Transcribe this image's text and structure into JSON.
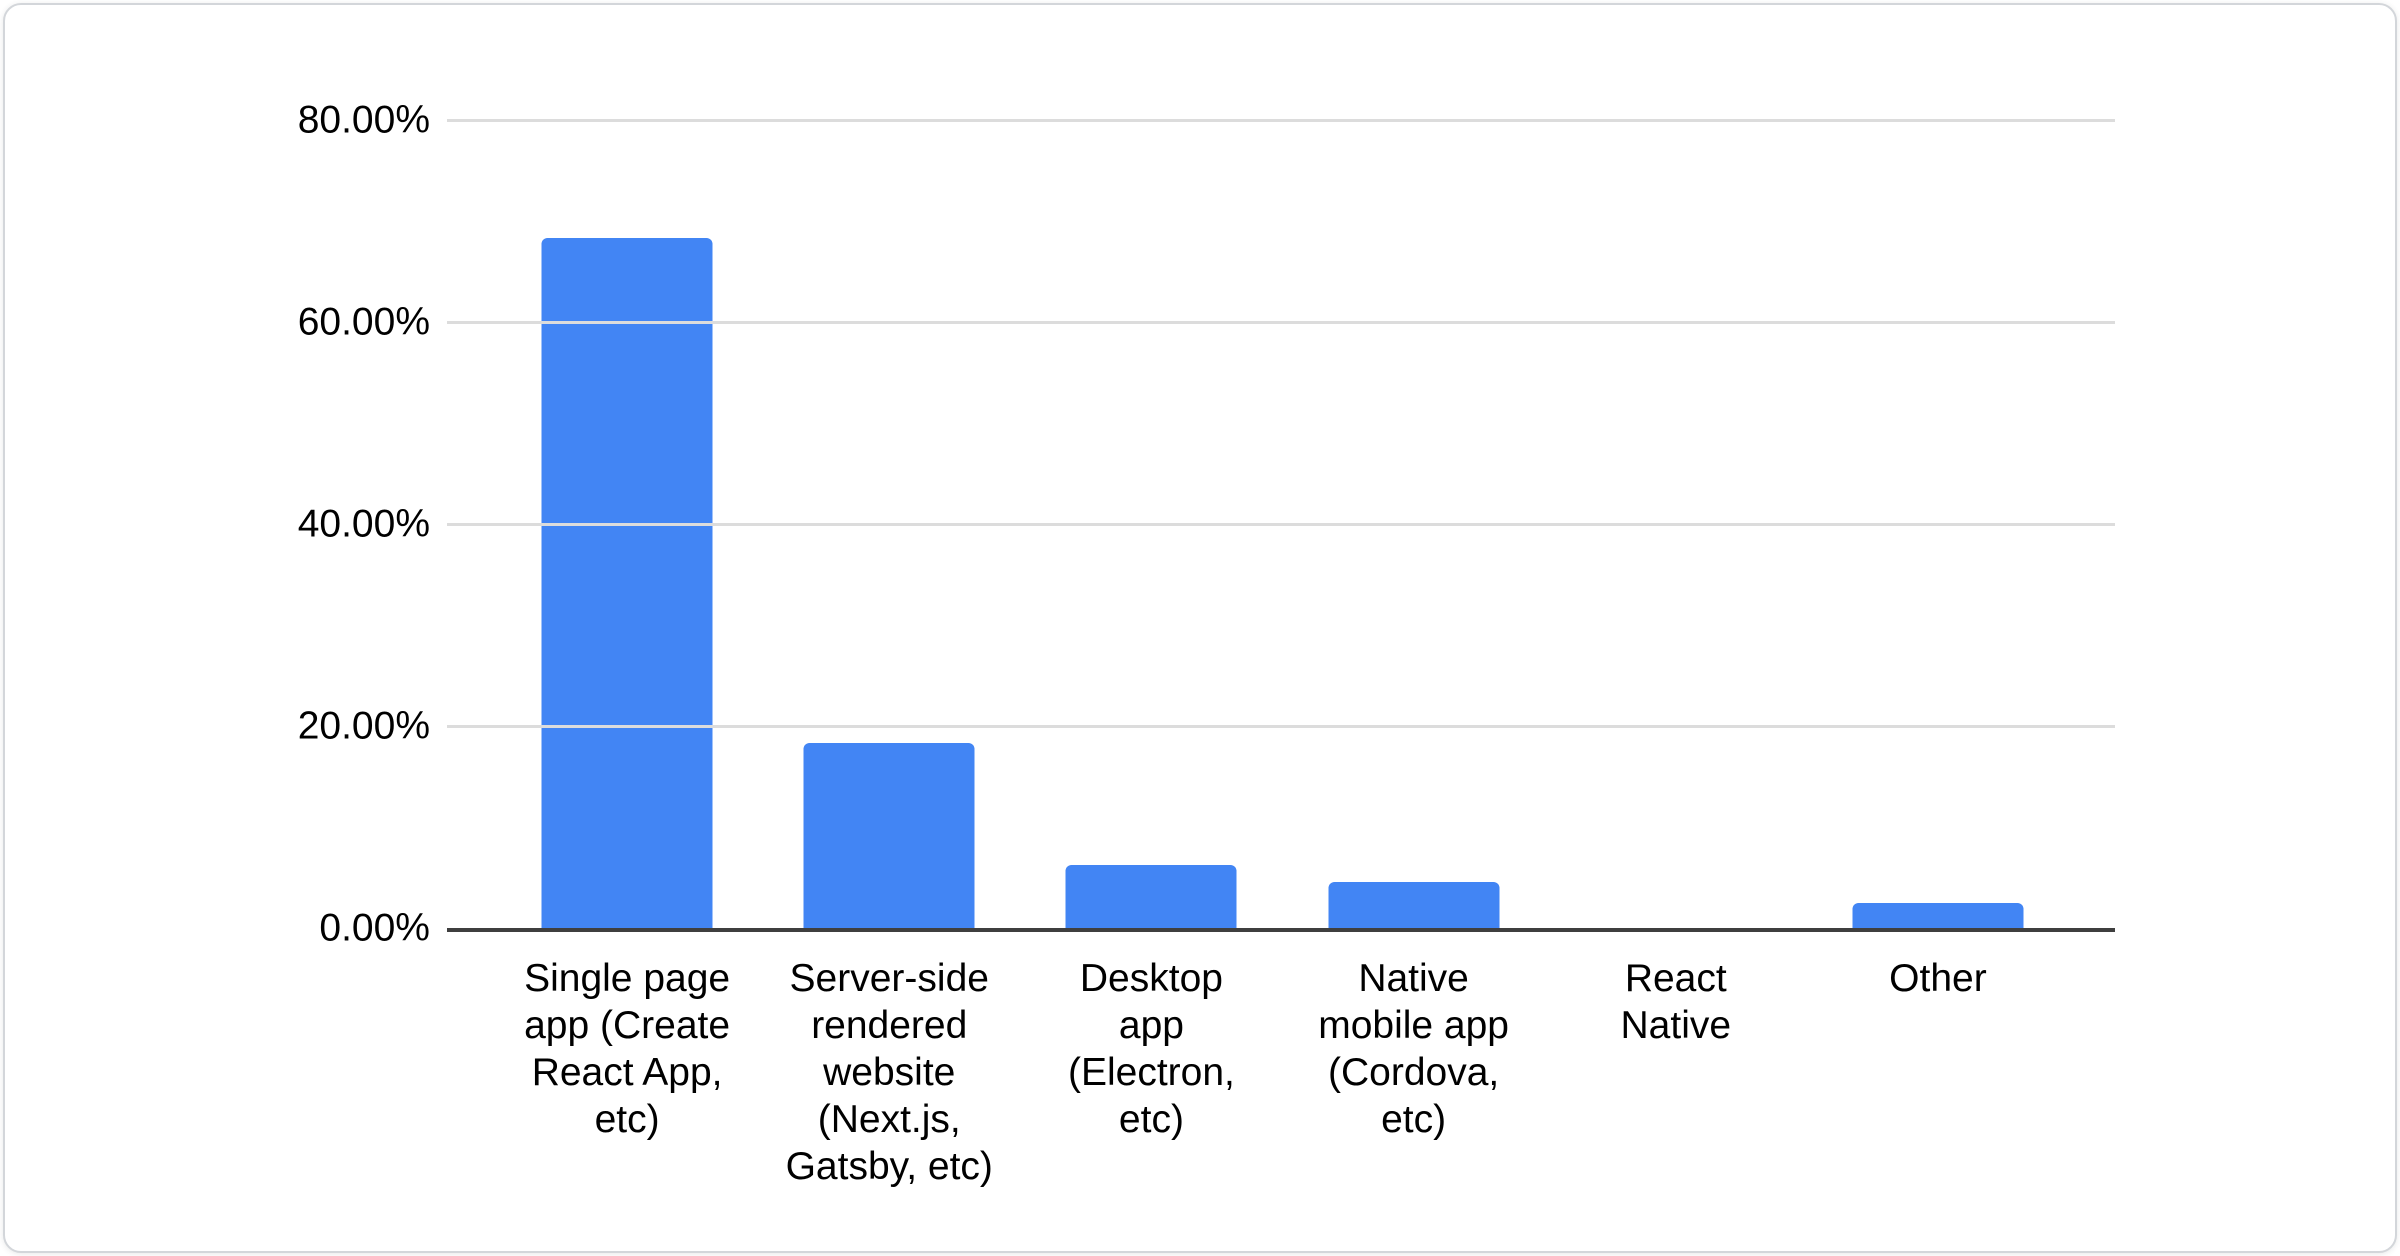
{
  "card": {
    "background": "#ffffff",
    "border_color": "#d3d6da"
  },
  "chart_data": {
    "type": "bar",
    "title": "",
    "xlabel": "",
    "ylabel": "",
    "categories": [
      "Single page app (Create React App, etc)",
      "Server-side rendered website (Next.js, Gatsby, etc)",
      "Desktop app (Electron, etc)",
      "Native mobile app (Cordova, etc)",
      "React Native",
      "Other"
    ],
    "category_label_lines": [
      [
        "Single page",
        "app (Create",
        "React App,",
        "etc)"
      ],
      [
        "Server-side",
        "rendered",
        "website",
        "(Next.js,",
        "Gatsby, etc)"
      ],
      [
        "Desktop",
        "app",
        "(Electron,",
        "etc)"
      ],
      [
        "Native",
        "mobile app",
        "(Cordova,",
        "etc)"
      ],
      [
        "React",
        "Native"
      ],
      [
        "Other"
      ]
    ],
    "values": [
      68.3,
      18.3,
      6.2,
      4.6,
      0,
      2.5
    ],
    "value_unit": "%",
    "ylim": [
      0,
      80
    ],
    "yticks": [
      {
        "value": 0,
        "label": "0.00%"
      },
      {
        "value": 20,
        "label": "20.00%"
      },
      {
        "value": 40,
        "label": "40.00%"
      },
      {
        "value": 60,
        "label": "60.00%"
      },
      {
        "value": 80,
        "label": "80.00%"
      }
    ],
    "grid": true,
    "legend": false,
    "colors": {
      "bar": "#4285f4",
      "axis_line": "#3f3f3f",
      "gridline": "#dcdcdc",
      "text": "#000000"
    }
  }
}
